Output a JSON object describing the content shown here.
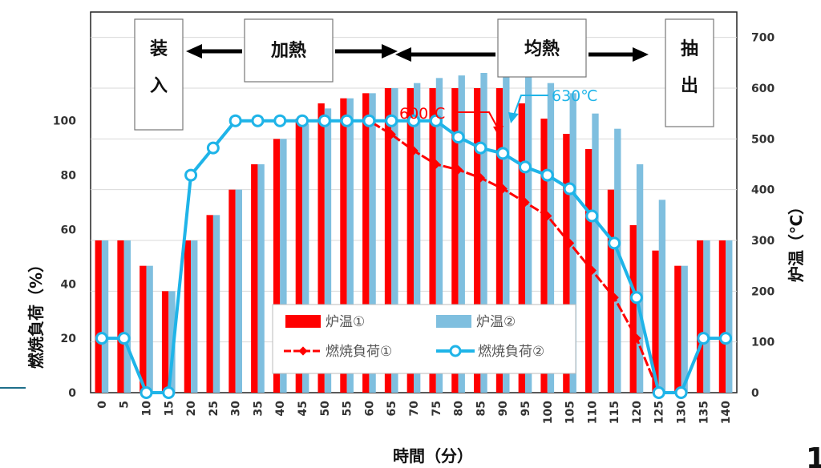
{
  "chart_data": {
    "type": "bar",
    "title": "",
    "xlabel": "時間（分）",
    "ylabel_left": "燃焼負荷（%）",
    "ylabel_right": "炉温（℃）",
    "categories": [
      "0",
      "5",
      "10",
      "15",
      "20",
      "25",
      "30",
      "35",
      "40",
      "45",
      "50",
      "55",
      "60",
      "65",
      "70",
      "75",
      "80",
      "85",
      "90",
      "95",
      "100",
      "105",
      "110",
      "115",
      "120",
      "125",
      "130",
      "135",
      "140"
    ],
    "ylim_left": [
      0,
      140
    ],
    "ylim_right": [
      0,
      750
    ],
    "yticks_left": [
      0,
      20,
      40,
      60,
      80,
      100
    ],
    "yticks_right": [
      0,
      100,
      200,
      300,
      400,
      500,
      600,
      700
    ],
    "grid": true,
    "legend_position": "center-bottom",
    "series": [
      {
        "name": "炉温①",
        "type": "bar",
        "axis": "right",
        "color": "#ff0000",
        "values": [
          300,
          300,
          250,
          200,
          300,
          350,
          400,
          450,
          500,
          540,
          570,
          580,
          590,
          600,
          600,
          600,
          600,
          600,
          600,
          570,
          540,
          510,
          480,
          400,
          330,
          280,
          250,
          300,
          300
        ]
      },
      {
        "name": "炉温②",
        "type": "bar",
        "axis": "right",
        "color": "#7fbfdf",
        "values": [
          300,
          300,
          250,
          200,
          300,
          350,
          400,
          450,
          500,
          530,
          560,
          580,
          590,
          600,
          610,
          620,
          625,
          630,
          630,
          630,
          610,
          590,
          550,
          520,
          450,
          380,
          250,
          300,
          300
        ]
      },
      {
        "name": "燃焼負荷①",
        "type": "line",
        "axis": "left",
        "color": "#ff0000",
        "values": [
          20,
          20,
          0,
          0,
          80,
          90,
          100,
          100,
          100,
          100,
          100,
          100,
          100,
          95,
          89,
          84,
          82,
          79,
          75,
          70,
          65,
          55,
          45,
          35,
          20,
          0,
          0,
          20,
          20
        ]
      },
      {
        "name": "燃焼負荷②",
        "type": "line",
        "axis": "left",
        "color": "#1fb4e8",
        "values": [
          20,
          20,
          0,
          0,
          80,
          90,
          100,
          100,
          100,
          100,
          100,
          100,
          100,
          100,
          100,
          100,
          94,
          90,
          88,
          83,
          80,
          75,
          65,
          55,
          35,
          0,
          0,
          20,
          20
        ]
      }
    ],
    "phases": [
      "装入",
      "加熱",
      "均熱",
      "抽出"
    ],
    "annotations": [
      {
        "text": "600℃",
        "x": "90",
        "color": "#ff0000"
      },
      {
        "text": "630℃",
        "x": "90",
        "color": "#1fb4e8"
      }
    ]
  },
  "page_number": "1"
}
